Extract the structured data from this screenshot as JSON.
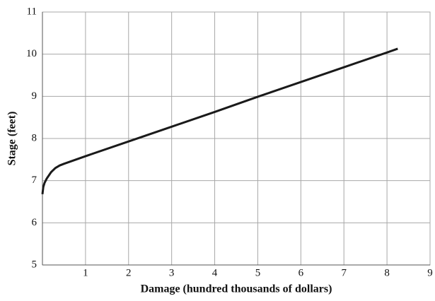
{
  "chart_data": {
    "type": "line",
    "xlabel": "Damage (hundred thousands of dollars)",
    "ylabel": "Stage (feet)",
    "x": [
      0,
      0.02,
      0.05,
      0.1,
      0.2,
      0.3,
      0.4,
      0.5,
      1,
      2,
      3,
      4,
      5,
      6,
      7,
      8,
      8.25
    ],
    "values": [
      6.68,
      6.85,
      6.95,
      7.05,
      7.2,
      7.3,
      7.36,
      7.4,
      7.58,
      7.93,
      8.28,
      8.63,
      8.99,
      9.34,
      9.69,
      10.04,
      10.13
    ],
    "color": "#1a1a1a",
    "xlim": [
      0,
      9
    ],
    "xticks": [
      1,
      2,
      3,
      4,
      5,
      6,
      7,
      8,
      9
    ],
    "ylim": [
      5,
      11
    ],
    "yticks": [
      5,
      6,
      7,
      8,
      9,
      10,
      11
    ],
    "grid": true
  }
}
